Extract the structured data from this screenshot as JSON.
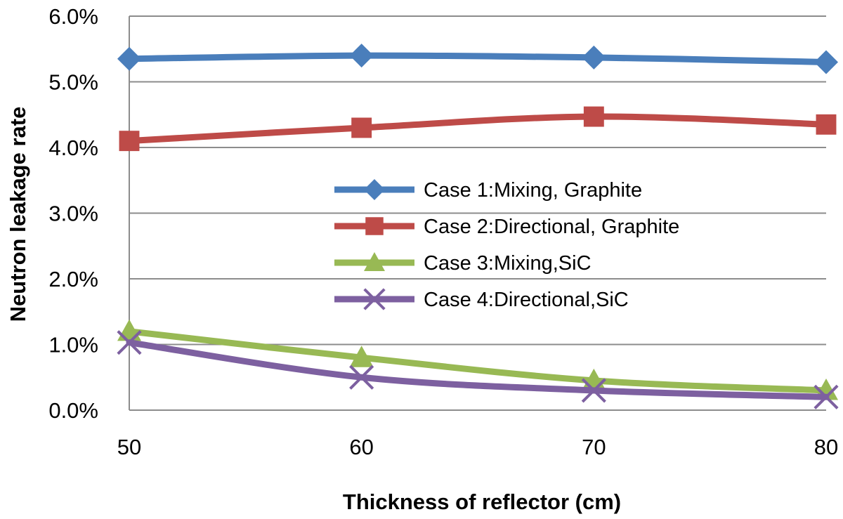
{
  "chart_data": {
    "type": "line",
    "title": "",
    "xlabel": "Thickness of reflector (cm)",
    "ylabel": "Neutron leakage rate",
    "x": [
      50,
      60,
      70,
      80
    ],
    "x_tick_labels": [
      "50",
      "60",
      "70",
      "80"
    ],
    "ylim": [
      0,
      6
    ],
    "y_tick_values": [
      0,
      1,
      2,
      3,
      4,
      5,
      6
    ],
    "y_tick_labels": [
      "0.0%",
      "1.0%",
      "2.0%",
      "3.0%",
      "4.0%",
      "5.0%",
      "6.0%"
    ],
    "y_unit": "%",
    "grid": "horizontal",
    "legend_position": "center-right",
    "series": [
      {
        "name": "Case 1:Mixing, Graphite",
        "values": [
          5.35,
          5.4,
          5.37,
          5.3
        ],
        "color": "#4a7ebb",
        "marker": "diamond"
      },
      {
        "name": "Case 2:Directional, Graphite",
        "values": [
          4.1,
          4.3,
          4.47,
          4.35
        ],
        "color": "#be4b48",
        "marker": "square"
      },
      {
        "name": "Case 3:Mixing,SiC",
        "values": [
          1.2,
          0.8,
          0.45,
          0.3
        ],
        "color": "#98b954",
        "marker": "triangle"
      },
      {
        "name": "Case 4:Directional,SiC",
        "values": [
          1.03,
          0.5,
          0.3,
          0.2
        ],
        "color": "#7d60a0",
        "marker": "x"
      }
    ]
  }
}
